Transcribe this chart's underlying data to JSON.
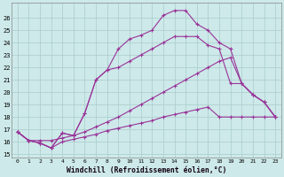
{
  "xlabel": "Windchill (Refroidissement éolien,°C)",
  "background_color": "#cde9e9",
  "grid_color": "#aacccc",
  "line_color": "#993399",
  "xlim": [
    -0.5,
    23.5
  ],
  "ylim": [
    14.7,
    27.2
  ],
  "xticks": [
    0,
    1,
    2,
    3,
    4,
    5,
    6,
    7,
    8,
    9,
    10,
    11,
    12,
    13,
    14,
    15,
    16,
    17,
    18,
    19,
    20,
    21,
    22,
    23
  ],
  "yticks": [
    15,
    16,
    17,
    18,
    19,
    20,
    21,
    22,
    23,
    24,
    25,
    26
  ],
  "series": [
    {
      "x": [
        0,
        1,
        2,
        3,
        4,
        5,
        6,
        7,
        8,
        9,
        10,
        11,
        12,
        13,
        14,
        15,
        16,
        17,
        18,
        19,
        20,
        21,
        22,
        23
      ],
      "y": [
        16.8,
        16.1,
        15.9,
        15.5,
        16.7,
        16.5,
        18.3,
        21.0,
        21.8,
        23.5,
        24.3,
        24.6,
        25.0,
        26.2,
        26.6,
        26.6,
        25.5,
        25.0,
        24.0,
        23.5,
        20.7,
        19.8,
        19.2,
        18.0
      ]
    },
    {
      "x": [
        0,
        1,
        2,
        3,
        4,
        5,
        6,
        7,
        8,
        9,
        10,
        11,
        12,
        13,
        14,
        15,
        16,
        17,
        18,
        19,
        20,
        21,
        22,
        23
      ],
      "y": [
        16.8,
        16.1,
        15.9,
        15.5,
        16.7,
        16.5,
        18.3,
        21.0,
        21.8,
        22.0,
        22.5,
        23.0,
        23.5,
        24.0,
        24.5,
        24.5,
        24.5,
        23.8,
        23.5,
        20.7,
        20.7,
        19.8,
        19.2,
        18.0
      ]
    },
    {
      "x": [
        0,
        1,
        2,
        3,
        4,
        5,
        6,
        7,
        8,
        9,
        10,
        11,
        12,
        13,
        14,
        15,
        16,
        17,
        18,
        19,
        20,
        21,
        22,
        23
      ],
      "y": [
        16.8,
        16.1,
        16.1,
        16.1,
        16.3,
        16.5,
        16.8,
        17.2,
        17.6,
        18.0,
        18.5,
        19.0,
        19.5,
        20.0,
        20.5,
        21.0,
        21.5,
        22.0,
        22.5,
        22.8,
        20.7,
        19.8,
        19.2,
        18.0
      ]
    },
    {
      "x": [
        0,
        1,
        2,
        3,
        4,
        5,
        6,
        7,
        8,
        9,
        10,
        11,
        12,
        13,
        14,
        15,
        16,
        17,
        18,
        19,
        20,
        21,
        22,
        23
      ],
      "y": [
        16.8,
        16.1,
        15.9,
        15.5,
        16.0,
        16.2,
        16.4,
        16.6,
        16.9,
        17.1,
        17.3,
        17.5,
        17.7,
        18.0,
        18.2,
        18.4,
        18.6,
        18.8,
        18.0,
        18.0,
        18.0,
        18.0,
        18.0,
        18.0
      ]
    }
  ]
}
